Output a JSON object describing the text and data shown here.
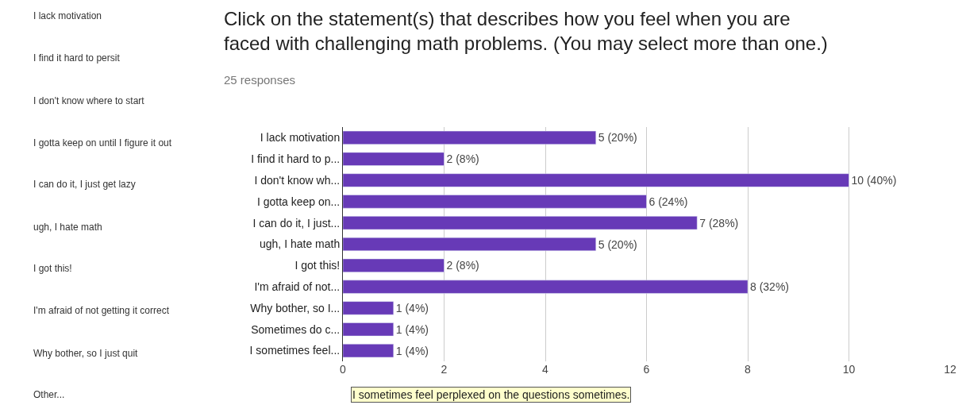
{
  "chart_data": {
    "type": "bar",
    "orientation": "horizontal",
    "title": "Click on the statement(s) that describes how you feel when you are\nfaced with challenging math problems. (You may select more than one.)",
    "subtitle": "25 responses",
    "categories": [
      "I lack motivation",
      "I find it hard to p...",
      "I don't know wh...",
      "I gotta keep on...",
      "I can do it, I just...",
      "ugh, I hate math",
      "I got this!",
      "I'm afraid of not...",
      "Why bother, so I...",
      "Sometimes do c...",
      "I sometimes feel..."
    ],
    "values": [
      5,
      2,
      10,
      6,
      7,
      5,
      2,
      8,
      1,
      1,
      1
    ],
    "value_labels": [
      "5 (20%)",
      "2 (8%)",
      "10 (40%)",
      "6 (24%)",
      "7 (28%)",
      "5 (20%)",
      "2 (8%)",
      "8 (32%)",
      "1 (4%)",
      "1 (4%)",
      "1 (4%)"
    ],
    "color": "#673ab7",
    "xlim": [
      0,
      12
    ],
    "xticks": [
      0,
      2,
      4,
      6,
      8,
      10,
      12
    ],
    "grid": "x",
    "annotations": [
      "I lack motivation",
      "I find it hard to persit",
      "I don't know where to start",
      "I gotta keep on until I figure it out",
      "I can do it, I just get lazy",
      "ugh, I hate math",
      "I got this!",
      "I'm afraid of not getting it correct",
      "Why bother, so I just quit",
      "Other...",
      "I sometimes feel perplexed on the questions sometimes."
    ]
  }
}
